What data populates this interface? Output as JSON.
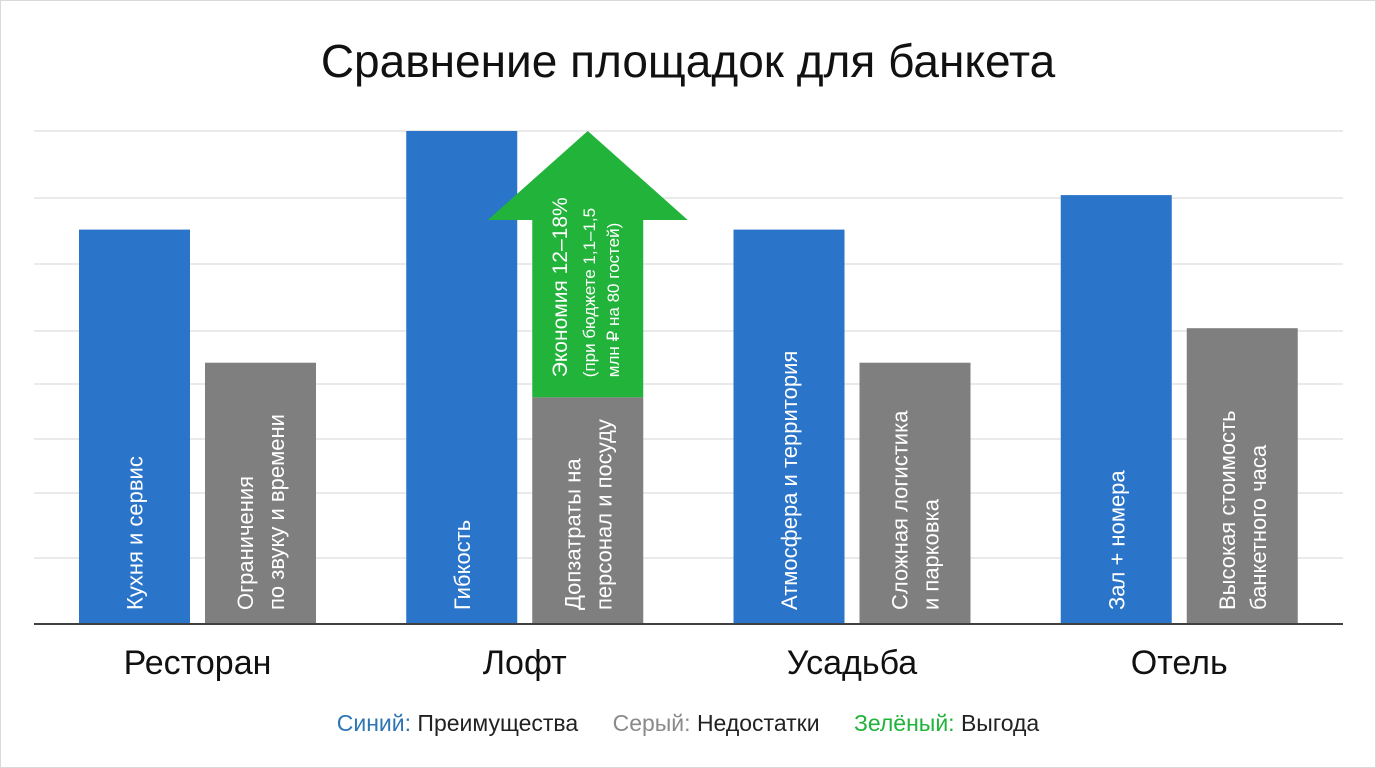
{
  "chart_data": {
    "type": "bar",
    "title": "Сравнение площадок для банкета",
    "categories": [
      "Ресторан",
      "Лофт",
      "Усадьба",
      "Отель"
    ],
    "ylim": [
      0,
      100
    ],
    "grid": true,
    "series": [
      {
        "key": "blue",
        "values": [
          80,
          100,
          80,
          87
        ],
        "labels": [
          [
            "Кухня и сервис"
          ],
          [
            "Гибкость"
          ],
          [
            "Атмосфера и территория"
          ],
          [
            "Зал + номера"
          ]
        ]
      },
      {
        "key": "gray",
        "values": [
          53,
          46,
          53,
          60
        ],
        "labels": [
          [
            "Ограничения",
            "по звуку и времени"
          ],
          [
            "Допзатраты на",
            "персонал и посуду"
          ],
          [
            "Сложная логистика",
            "и парковка"
          ],
          [
            "Высокая стоимость",
            "банкетного часа"
          ]
        ]
      }
    ],
    "annotations": [
      {
        "type": "arrow",
        "category": "Лофт",
        "from": 46,
        "to": 100,
        "color": "#22b33a",
        "lines": [
          "Экономия 12–18%",
          "(при бюджете 1,1–1,5",
          "млн ₽ на 80 гостей)"
        ]
      }
    ]
  },
  "legend": [
    {
      "key": "Синий:",
      "text": "Преимущества",
      "color": "#2e75b6"
    },
    {
      "key": "Серый:",
      "text": "Недостатки",
      "color": "#8a8a8a"
    },
    {
      "key": "Зелёный:",
      "text": "Выгода",
      "color": "#22b33a"
    }
  ],
  "colors": {
    "blue": "#2a74c9",
    "gray": "#7f7f7f",
    "green": "#22b33a",
    "grid": "#d6d6d6",
    "axis": "#404040"
  }
}
